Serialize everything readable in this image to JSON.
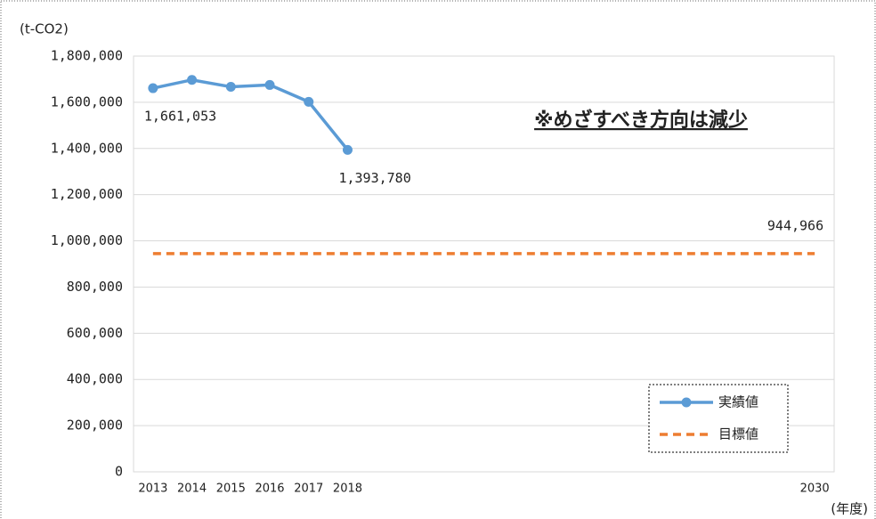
{
  "chart_data": {
    "type": "line",
    "y_unit": "(t-CO2)",
    "x_label": "(年度)",
    "annotation": "※めざすべき方向は減少",
    "xlim": [
      2012.5,
      2030.5
    ],
    "xticks": [
      2013,
      2014,
      2015,
      2016,
      2017,
      2018,
      2030
    ],
    "ylim": [
      0,
      1800000
    ],
    "yticks": [
      {
        "value": 0,
        "label": "0"
      },
      {
        "value": 200000,
        "label": "200,000"
      },
      {
        "value": 400000,
        "label": "400,000"
      },
      {
        "value": 600000,
        "label": "600,000"
      },
      {
        "value": 800000,
        "label": "800,000"
      },
      {
        "value": 1000000,
        "label": "1,000,000"
      },
      {
        "value": 1200000,
        "label": "1,200,000"
      },
      {
        "value": 1400000,
        "label": "1,400,000"
      },
      {
        "value": 1600000,
        "label": "1,600,000"
      },
      {
        "value": 1800000,
        "label": "1,800,000"
      }
    ],
    "grid": true,
    "legend": "lower right",
    "series": [
      {
        "name": "実績値",
        "color": "#5b9bd5",
        "dashed": false,
        "markers": true,
        "x": [
          2013,
          2014,
          2015,
          2016,
          2017,
          2018
        ],
        "values": [
          1661053,
          1697000,
          1667000,
          1675000,
          1602000,
          1393780
        ],
        "value_labels": [
          "1,661,053",
          null,
          null,
          null,
          null,
          "1,393,780"
        ]
      },
      {
        "name": "目標値",
        "color": "#ed7d31",
        "dashed": true,
        "markers": false,
        "x": [
          2013,
          2030
        ],
        "values": [
          944966,
          944966
        ],
        "value_labels": [
          null,
          "944,966"
        ]
      }
    ]
  }
}
